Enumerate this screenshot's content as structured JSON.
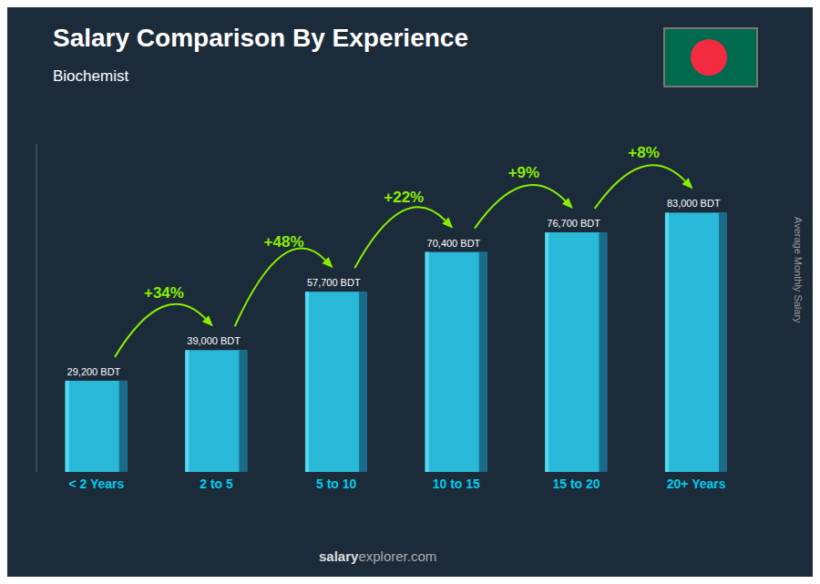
{
  "chart_data": {
    "type": "bar",
    "title": "Salary Comparison By Experience",
    "subtitle": "Biochemist",
    "categories": [
      "< 2 Years",
      "2 to 5",
      "5 to 10",
      "10 to 15",
      "15 to 20",
      "20+ Years"
    ],
    "values": [
      29200,
      39000,
      57700,
      70400,
      76700,
      83000
    ],
    "value_labels": [
      "29,200 BDT",
      "39,000 BDT",
      "57,700 BDT",
      "70,400 BDT",
      "76,700 BDT",
      "83,000 BDT"
    ],
    "data_labels": true,
    "color": "#2ab8d8",
    "ylim": [
      0,
      105000
    ],
    "yticks": [],
    "tick_labels": "x",
    "grid": false,
    "y_label": "Average Monthly Salary",
    "annotations": [
      "+34%",
      "+48%",
      "+22%",
      "+9%",
      "+8%"
    ],
    "footer": [
      "salary",
      "explorer.com"
    ]
  }
}
